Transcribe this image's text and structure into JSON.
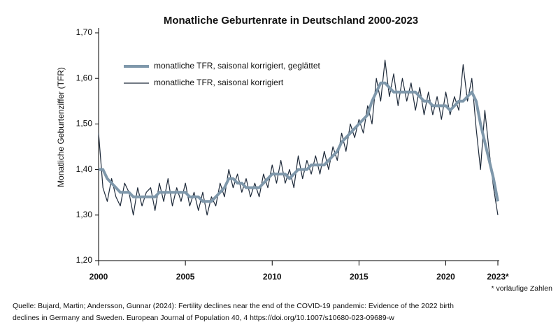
{
  "chart_data": {
    "type": "line",
    "title": "Monatliche Geburtenrate in Deutschland 2000-2023",
    "ylabel": "Monatliche Geburtenziffer (TFR)",
    "note": "* vorläufige Zahlen",
    "source": [
      "Quelle: Bujard, Martin; Andersson, Gunnar (2024): Fertility declines near the end of the COVID-19 pandemic: Evidence of the 2022 birth",
      "declines in Germany and Sweden. European Journal of Population 40, 4 https://doi.org/10.1007/s10680-023-09689-w"
    ],
    "x": [
      2000,
      2000.25,
      2000.5,
      2000.75,
      2001,
      2001.25,
      2001.5,
      2001.75,
      2002,
      2002.25,
      2002.5,
      2002.75,
      2003,
      2003.25,
      2003.5,
      2003.75,
      2004,
      2004.25,
      2004.5,
      2004.75,
      2005,
      2005.25,
      2005.5,
      2005.75,
      2006,
      2006.25,
      2006.5,
      2006.75,
      2007,
      2007.25,
      2007.5,
      2007.75,
      2008,
      2008.25,
      2008.5,
      2008.75,
      2009,
      2009.25,
      2009.5,
      2009.75,
      2010,
      2010.25,
      2010.5,
      2010.75,
      2011,
      2011.25,
      2011.5,
      2011.75,
      2012,
      2012.25,
      2012.5,
      2012.75,
      2013,
      2013.25,
      2013.5,
      2013.75,
      2014,
      2014.25,
      2014.5,
      2014.75,
      2015,
      2015.25,
      2015.5,
      2015.75,
      2016,
      2016.25,
      2016.5,
      2016.75,
      2017,
      2017.25,
      2017.5,
      2017.75,
      2018,
      2018.25,
      2018.5,
      2018.75,
      2019,
      2019.25,
      2019.5,
      2019.75,
      2020,
      2020.25,
      2020.5,
      2020.75,
      2021,
      2021.25,
      2021.5,
      2021.75,
      2022,
      2022.25,
      2022.5,
      2022.75,
      2023
    ],
    "series": [
      {
        "name": "monatliche TFR, saisonal korrigiert, geglättet",
        "color": "#7f98ab",
        "width": 4,
        "values": [
          1.4,
          1.4,
          1.38,
          1.37,
          1.36,
          1.35,
          1.35,
          1.35,
          1.34,
          1.34,
          1.34,
          1.34,
          1.34,
          1.34,
          1.35,
          1.35,
          1.35,
          1.35,
          1.35,
          1.35,
          1.35,
          1.34,
          1.34,
          1.34,
          1.33,
          1.33,
          1.33,
          1.34,
          1.35,
          1.36,
          1.38,
          1.38,
          1.37,
          1.37,
          1.36,
          1.36,
          1.36,
          1.36,
          1.37,
          1.38,
          1.39,
          1.39,
          1.39,
          1.39,
          1.38,
          1.39,
          1.4,
          1.4,
          1.4,
          1.41,
          1.41,
          1.41,
          1.41,
          1.42,
          1.43,
          1.44,
          1.46,
          1.47,
          1.48,
          1.49,
          1.5,
          1.51,
          1.52,
          1.55,
          1.57,
          1.59,
          1.59,
          1.58,
          1.57,
          1.57,
          1.57,
          1.57,
          1.57,
          1.57,
          1.56,
          1.55,
          1.55,
          1.54,
          1.54,
          1.54,
          1.54,
          1.53,
          1.54,
          1.55,
          1.55,
          1.56,
          1.57,
          1.55,
          1.5,
          1.46,
          1.42,
          1.38,
          1.33
        ]
      },
      {
        "name": "monatliche TFR, saisonal korrigiert",
        "color": "#1e2a3a",
        "width": 1.2,
        "values": [
          1.48,
          1.36,
          1.33,
          1.38,
          1.34,
          1.32,
          1.37,
          1.35,
          1.3,
          1.36,
          1.32,
          1.35,
          1.36,
          1.31,
          1.37,
          1.33,
          1.38,
          1.32,
          1.36,
          1.33,
          1.37,
          1.32,
          1.35,
          1.31,
          1.35,
          1.3,
          1.34,
          1.32,
          1.37,
          1.34,
          1.4,
          1.36,
          1.39,
          1.35,
          1.38,
          1.34,
          1.37,
          1.34,
          1.39,
          1.36,
          1.41,
          1.37,
          1.42,
          1.37,
          1.4,
          1.36,
          1.43,
          1.38,
          1.42,
          1.39,
          1.43,
          1.39,
          1.44,
          1.4,
          1.45,
          1.42,
          1.48,
          1.44,
          1.5,
          1.47,
          1.51,
          1.48,
          1.54,
          1.5,
          1.6,
          1.55,
          1.64,
          1.56,
          1.61,
          1.54,
          1.6,
          1.55,
          1.59,
          1.53,
          1.58,
          1.52,
          1.57,
          1.52,
          1.56,
          1.51,
          1.57,
          1.52,
          1.56,
          1.53,
          1.63,
          1.55,
          1.6,
          1.49,
          1.4,
          1.53,
          1.44,
          1.36,
          1.3
        ]
      }
    ],
    "xlim": [
      2000,
      2023
    ],
    "xticks": [
      2000,
      2005,
      2010,
      2015,
      2020,
      {
        "value": 2023,
        "label": "2023*"
      }
    ],
    "ylim": [
      1.2,
      1.7
    ],
    "yticks": [
      {
        "value": 1.2,
        "label": "1,20"
      },
      {
        "value": 1.3,
        "label": "1,30"
      },
      {
        "value": 1.4,
        "label": "1,40"
      },
      {
        "value": 1.5,
        "label": "1,50"
      },
      {
        "value": 1.6,
        "label": "1,60"
      },
      {
        "value": 1.7,
        "label": "1,70"
      }
    ]
  }
}
